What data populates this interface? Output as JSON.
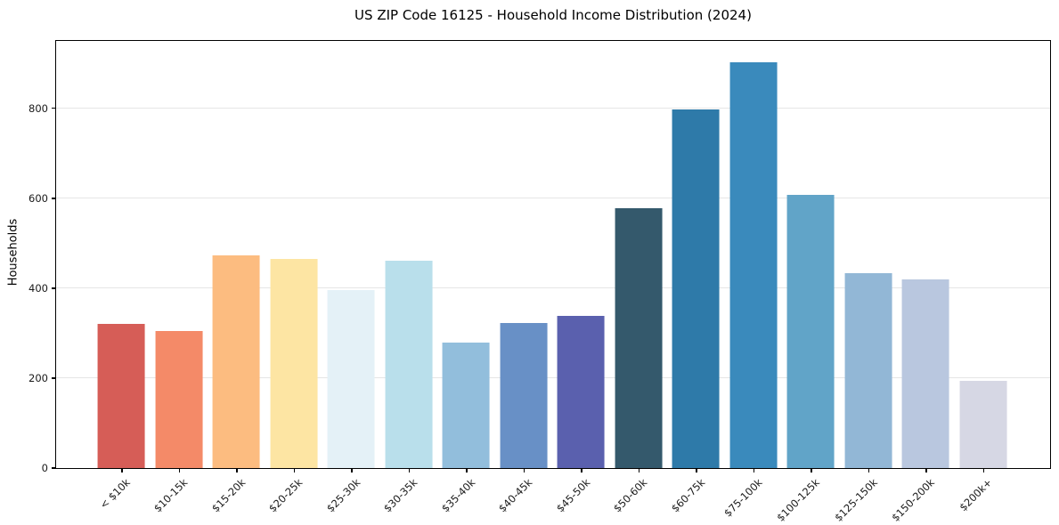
{
  "chart_data": {
    "type": "bar",
    "title": "US ZIP Code 16125 - Household Income Distribution (2024)",
    "xlabel": "",
    "ylabel": "Households",
    "ylim": [
      0,
      950
    ],
    "yticks": [
      0,
      200,
      400,
      600,
      800
    ],
    "grid": "horizontal-light",
    "legend": "none",
    "categories": [
      "< $10k",
      "$10-15k",
      "$15-20k",
      "$20-25k",
      "$25-30k",
      "$30-35k",
      "$35-40k",
      "$40-45k",
      "$45-50k",
      "$50-60k",
      "$60-75k",
      "$75-100k",
      "$100-125k",
      "$125-150k",
      "$150-200k",
      "$200k+"
    ],
    "values": [
      320,
      304,
      473,
      465,
      396,
      462,
      280,
      322,
      339,
      578,
      797,
      903,
      608,
      433,
      420,
      193
    ],
    "bar_colors": [
      "#d65d57",
      "#f48a68",
      "#fcbc80",
      "#fde5a3",
      "#e4f1f7",
      "#b9dfeb",
      "#92bedc",
      "#6890c6",
      "#5a60ae",
      "#34596c",
      "#2e7aa9",
      "#3a8abc",
      "#61a4c8",
      "#92b7d6",
      "#b9c7df",
      "#d6d7e4"
    ],
    "text_color": "#1a1a1a",
    "gridline_color": "#e6e6e6",
    "spine_color": "#000000",
    "background_color": "#ffffff"
  }
}
